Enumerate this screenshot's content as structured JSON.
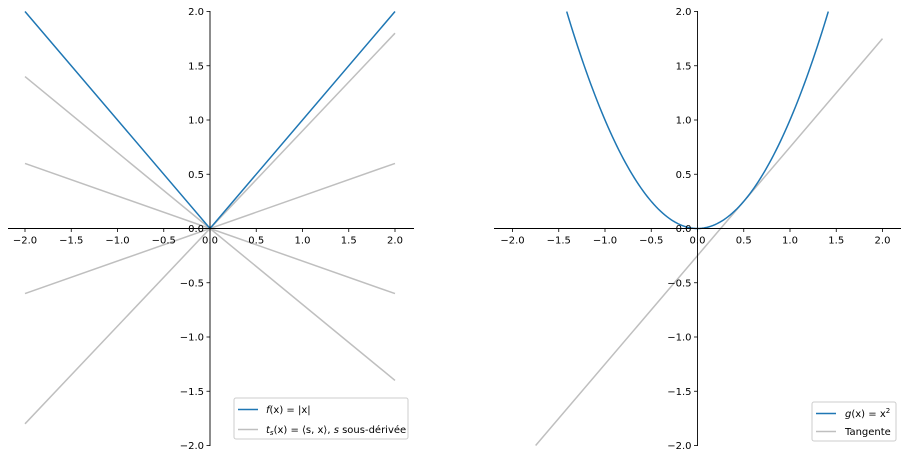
{
  "chart_data": [
    {
      "type": "line",
      "xlim": [
        -2.2,
        2.2
      ],
      "ylim": [
        -2.0,
        2.0
      ],
      "xticks": [
        -2.0,
        -1.5,
        -1.0,
        -0.5,
        0.0,
        0.5,
        1.0,
        1.5,
        2.0
      ],
      "yticks": [
        -2.0,
        -1.5,
        -1.0,
        -0.5,
        0.0,
        0.5,
        1.0,
        1.5,
        2.0
      ],
      "xtick_labels": [
        "−2.0",
        "−1.5",
        "−1.0",
        "−0.5",
        "0.0",
        "0.5",
        "1.0",
        "1.5",
        "2.0"
      ],
      "ytick_labels": [
        "−2.0",
        "−1.5",
        "−1.0",
        "−0.5",
        "0.0",
        "0.5",
        "1.0",
        "1.5",
        "2.0"
      ],
      "legend_position": "lower-right",
      "series": [
        {
          "name": "f(x) = |x|",
          "color": "#1f77b4",
          "x": [
            -2.0,
            0.0,
            2.0
          ],
          "y": [
            2.0,
            0.0,
            2.0
          ]
        },
        {
          "name": "t_s(x) = ⟨s, x⟩, s sous-dérivée",
          "color": "#bfbfbf",
          "lines": [
            {
              "x": [
                -2.0,
                2.0
              ],
              "y": [
                1.4,
                -1.4
              ]
            },
            {
              "x": [
                -2.0,
                2.0
              ],
              "y": [
                0.6,
                -0.6
              ]
            },
            {
              "x": [
                -2.0,
                2.0
              ],
              "y": [
                -0.6,
                0.6
              ]
            },
            {
              "x": [
                -2.0,
                2.0
              ],
              "y": [
                -1.8,
                1.8
              ]
            }
          ]
        }
      ],
      "legend": {
        "f_prefix": "f",
        "f_rest": "(x) = |x|",
        "t_prefix": "t",
        "t_sub": "s",
        "t_mid": "(x) = ⟨s, x⟩, ",
        "t_s": "s",
        "t_rest": " sous-dérivée"
      }
    },
    {
      "type": "line",
      "xlim": [
        -2.2,
        2.2
      ],
      "ylim": [
        -2.0,
        2.0
      ],
      "xticks": [
        -2.0,
        -1.5,
        -1.0,
        -0.5,
        0.0,
        0.5,
        1.0,
        1.5,
        2.0
      ],
      "yticks": [
        -2.0,
        -1.5,
        -1.0,
        -0.5,
        0.0,
        0.5,
        1.0,
        1.5,
        2.0
      ],
      "xtick_labels": [
        "−2.0",
        "−1.5",
        "−1.0",
        "−0.5",
        "0.0",
        "0.5",
        "1.0",
        "1.5",
        "2.0"
      ],
      "ytick_labels": [
        "−2.0",
        "−1.5",
        "−1.0",
        "−0.5",
        "0.0",
        "0.5",
        "1.0",
        "1.5",
        "2.0"
      ],
      "legend_position": "lower-right",
      "series": [
        {
          "name": "g(x) = x²",
          "color": "#1f77b4",
          "function": "x^2",
          "x_range": [
            -1.414,
            1.414
          ]
        },
        {
          "name": "Tangente",
          "color": "#bfbfbf",
          "x": [
            -1.75,
            2.0
          ],
          "y": [
            -2.0,
            1.75
          ]
        }
      ],
      "legend": {
        "g_prefix": "g",
        "g_rest": "(x) = x",
        "g_sup": "2",
        "tangent_label": "Tangente"
      }
    }
  ]
}
